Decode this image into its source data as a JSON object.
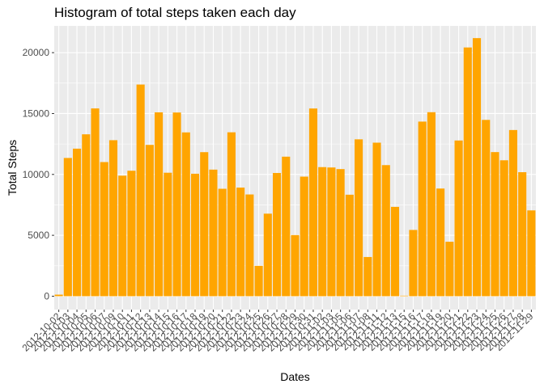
{
  "chart_data": {
    "type": "bar",
    "title": "Histogram of total steps taken each day",
    "xlabel": "Dates",
    "ylabel": "Total Steps",
    "ylim": [
      -1100,
      22200
    ],
    "yticks": [
      0,
      5000,
      10000,
      15000,
      20000
    ],
    "bar_color": "#FFA500",
    "panel_color": "#EBEBEB",
    "grid_color": "#FFFFFF",
    "categories": [
      "2012-10-02",
      "2012-10-03",
      "2012-10-04",
      "2012-10-05",
      "2012-10-06",
      "2012-10-07",
      "2012-10-09",
      "2012-10-10",
      "2012-10-11",
      "2012-10-12",
      "2012-10-13",
      "2012-10-14",
      "2012-10-15",
      "2012-10-16",
      "2012-10-17",
      "2012-10-18",
      "2012-10-19",
      "2012-10-20",
      "2012-10-21",
      "2012-10-22",
      "2012-10-23",
      "2012-10-24",
      "2012-10-25",
      "2012-10-26",
      "2012-10-27",
      "2012-10-28",
      "2012-10-29",
      "2012-10-30",
      "2012-10-31",
      "2012-11-02",
      "2012-11-03",
      "2012-11-05",
      "2012-11-06",
      "2012-11-07",
      "2012-11-08",
      "2012-11-11",
      "2012-11-12",
      "2012-11-13",
      "2012-11-15",
      "2012-11-16",
      "2012-11-17",
      "2012-11-18",
      "2012-11-19",
      "2012-11-20",
      "2012-11-21",
      "2012-11-22",
      "2012-11-23",
      "2012-11-24",
      "2012-11-25",
      "2012-11-26",
      "2012-11-27",
      "2012-11-28",
      "2012-11-29"
    ],
    "values": [
      126,
      11352,
      12116,
      13294,
      15420,
      11015,
      12811,
      9900,
      10304,
      17382,
      12426,
      15098,
      10139,
      15084,
      13452,
      10056,
      11829,
      10395,
      8821,
      13460,
      8918,
      8355,
      2492,
      6778,
      10119,
      11458,
      5018,
      9819,
      15414,
      10600,
      10571,
      10439,
      8334,
      12883,
      3219,
      12608,
      10765,
      7336,
      41,
      5441,
      14339,
      15110,
      8841,
      4472,
      12787,
      20427,
      21194,
      14478,
      11834,
      11162,
      13646,
      10183,
      7047
    ]
  }
}
